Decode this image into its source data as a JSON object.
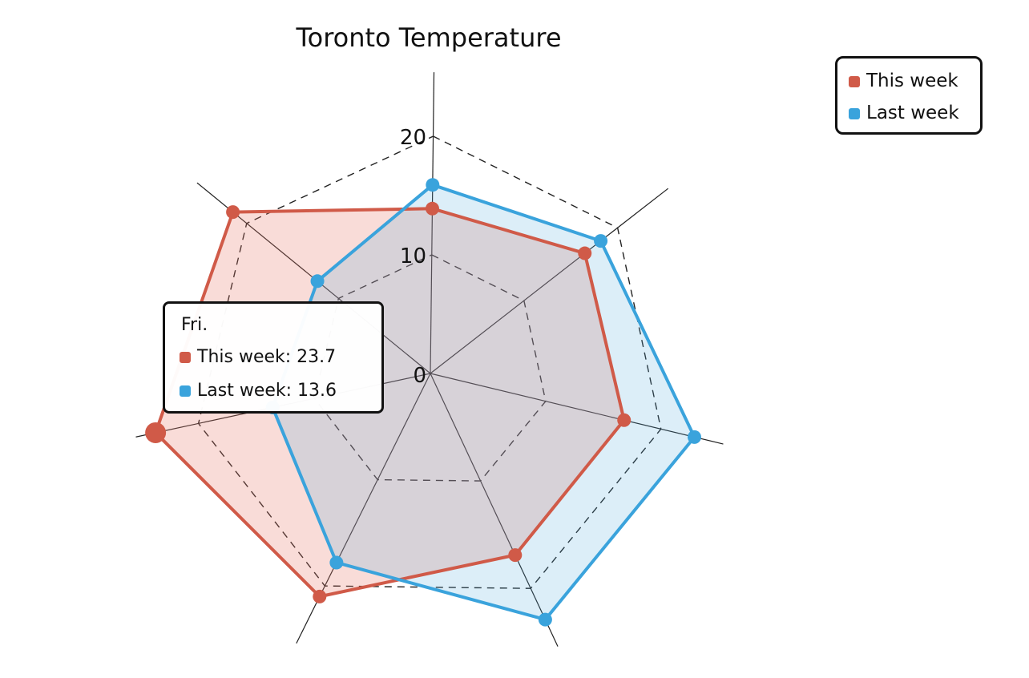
{
  "chart_data": {
    "type": "radar",
    "title": "Toronto Temperature",
    "axis_ticks": [
      "0",
      "10",
      "20"
    ],
    "rmax": 20,
    "grid": "dashed",
    "legend_placement": "top-right",
    "categories": [
      "",
      "",
      "",
      "",
      "",
      "Fri.",
      ""
    ],
    "series": [
      {
        "name": "This week",
        "color": "#d05a48",
        "values": [
          13.9,
          16.5,
          16.8,
          16.9,
          21.0,
          23.7,
          21.5
        ]
      },
      {
        "name": "Last week",
        "color": "#3aa3dc",
        "values": [
          15.9,
          18.2,
          22.9,
          22.9,
          17.8,
          13.6,
          12.3
        ]
      }
    ],
    "tooltip": {
      "category": "Fri.",
      "rows": [
        {
          "text": "This week: 23.7",
          "color": "#d05a48"
        },
        {
          "text": "Last week: 13.6",
          "color": "#3aa3dc"
        }
      ]
    }
  }
}
